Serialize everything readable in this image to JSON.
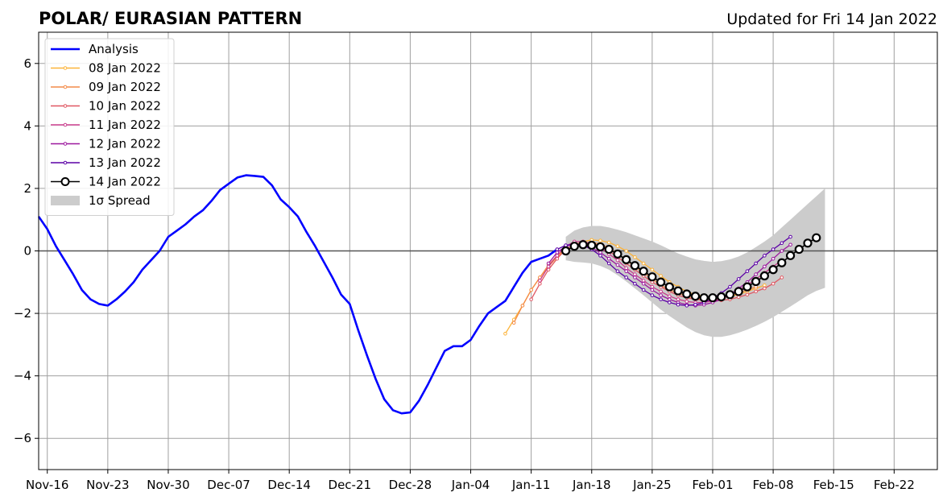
{
  "chart_data": {
    "type": "line",
    "title": "POLAR/ EURASIAN  PATTERN",
    "subtitle": "Updated for Fri 14 Jan 2022",
    "xlabel": "",
    "ylabel": "",
    "grid": true,
    "legend_placement": "top-left",
    "ylim": [
      -7,
      7
    ],
    "y_ticks": [
      -6,
      -4,
      -2,
      0,
      2,
      4,
      6
    ],
    "y_tick_labels": [
      "−6",
      "−4",
      "−2",
      "0",
      "2",
      "4",
      "6"
    ],
    "xlim": [
      "2021-11-15",
      "2022-02-27"
    ],
    "x_ticks": [
      "2021-11-16",
      "2021-11-23",
      "2021-11-30",
      "2021-12-07",
      "2021-12-14",
      "2021-12-21",
      "2021-12-28",
      "2022-01-04",
      "2022-01-11",
      "2022-01-18",
      "2022-01-25",
      "2022-02-01",
      "2022-02-08",
      "2022-02-15",
      "2022-02-22"
    ],
    "x_tick_labels": [
      "Nov-16",
      "Nov-23",
      "Nov-30",
      "Dec-07",
      "Dec-14",
      "Dec-21",
      "Dec-28",
      "Jan-04",
      "Jan-11",
      "Jan-18",
      "Jan-25",
      "Feb-01",
      "Feb-08",
      "Feb-15",
      "Feb-22"
    ],
    "analysis": {
      "name": "Analysis",
      "color": "#0000ff",
      "start": "2021-11-15",
      "values": [
        1.1,
        0.7,
        0.15,
        -0.3,
        -0.75,
        -1.25,
        -1.55,
        -1.7,
        -1.75,
        -1.55,
        -1.3,
        -1.0,
        -0.6,
        -0.3,
        0.0,
        0.45,
        0.65,
        0.85,
        1.1,
        1.3,
        1.6,
        1.95,
        2.15,
        2.35,
        2.42,
        2.4,
        2.37,
        2.1,
        1.65,
        1.4,
        1.1,
        0.6,
        0.15,
        -0.35,
        -0.85,
        -1.4,
        -1.7,
        -2.55,
        -3.35,
        -4.1,
        -4.75,
        -5.1,
        -5.2,
        -5.17,
        -4.8,
        -4.3,
        -3.75,
        -3.2,
        -3.05,
        -3.05,
        -2.85,
        -2.4,
        -2.0,
        -1.8,
        -1.6,
        -1.15,
        -0.7,
        -0.35,
        -0.25,
        -0.15,
        0.05
      ]
    },
    "forecasts": [
      {
        "name": "08 Jan 2022",
        "color": "#fcb339",
        "start": "2022-01-08",
        "values": [
          -2.65,
          -2.2,
          -1.75,
          -1.25,
          -0.85,
          -0.5,
          -0.2,
          0.05,
          0.2,
          0.3,
          0.35,
          0.33,
          0.27,
          0.15,
          0.0,
          -0.2,
          -0.4,
          -0.6,
          -0.8,
          -1.0,
          -1.15,
          -1.3,
          -1.4,
          -1.45,
          -1.5,
          -1.5,
          -1.45,
          -1.4,
          -1.3,
          -1.2,
          -1.1
        ]
      },
      {
        "name": "09 Jan 2022",
        "color": "#f48b48",
        "start": "2022-01-09",
        "values": [
          -2.3,
          -1.75,
          -1.25,
          -0.85,
          -0.45,
          -0.15,
          0.05,
          0.2,
          0.27,
          0.27,
          0.22,
          0.1,
          -0.1,
          -0.3,
          -0.5,
          -0.7,
          -0.9,
          -1.1,
          -1.25,
          -1.35,
          -1.45,
          -1.52,
          -1.55,
          -1.55,
          -1.52,
          -1.45,
          -1.35,
          -1.25,
          -1.15
        ]
      },
      {
        "name": "10 Jan 2022",
        "color": "#e05762",
        "start": "2022-01-11",
        "values": [
          -1.55,
          -1.05,
          -0.6,
          -0.25,
          0.05,
          0.2,
          0.28,
          0.25,
          0.15,
          0.0,
          -0.2,
          -0.4,
          -0.6,
          -0.8,
          -1.0,
          -1.15,
          -1.3,
          -1.42,
          -1.5,
          -1.55,
          -1.58,
          -1.6,
          -1.58,
          -1.55,
          -1.48,
          -1.4,
          -1.3,
          -1.2,
          -1.05,
          -0.85
        ]
      },
      {
        "name": "11 Jan 2022",
        "color": "#c93c8c",
        "start": "2022-01-12",
        "values": [
          -0.95,
          -0.5,
          -0.15,
          0.15,
          0.3,
          0.3,
          0.22,
          0.1,
          -0.1,
          -0.3,
          -0.55,
          -0.75,
          -0.95,
          -1.15,
          -1.3,
          -1.45,
          -1.55,
          -1.62,
          -1.65,
          -1.65,
          -1.6,
          -1.52,
          -1.4,
          -1.25,
          -1.1,
          -0.9,
          -0.7,
          -0.5,
          -0.3
        ]
      },
      {
        "name": "12 Jan 2022",
        "color": "#9c179e",
        "start": "2022-01-13",
        "values": [
          -0.4,
          -0.05,
          0.15,
          0.22,
          0.2,
          0.1,
          -0.05,
          -0.25,
          -0.45,
          -0.65,
          -0.85,
          -1.05,
          -1.25,
          -1.42,
          -1.55,
          -1.65,
          -1.72,
          -1.75,
          -1.72,
          -1.65,
          -1.55,
          -1.4,
          -1.2,
          -1.0,
          -0.75,
          -0.5,
          -0.25,
          0.0,
          0.2
        ]
      },
      {
        "name": "13 Jan 2022",
        "color": "#5c01a6",
        "start": "2022-01-14",
        "values": [
          0.05,
          0.18,
          0.22,
          0.18,
          0.05,
          -0.15,
          -0.4,
          -0.65,
          -0.85,
          -1.05,
          -1.25,
          -1.42,
          -1.55,
          -1.65,
          -1.72,
          -1.75,
          -1.72,
          -1.65,
          -1.52,
          -1.35,
          -1.15,
          -0.9,
          -0.65,
          -0.4,
          -0.15,
          0.05,
          0.25,
          0.45
        ]
      },
      {
        "name": "14 Jan 2022",
        "color": "#000000",
        "start": "2022-01-15",
        "values": [
          0.0,
          0.15,
          0.2,
          0.18,
          0.13,
          0.05,
          -0.1,
          -0.28,
          -0.47,
          -0.65,
          -0.83,
          -1.0,
          -1.15,
          -1.28,
          -1.38,
          -1.45,
          -1.5,
          -1.5,
          -1.47,
          -1.4,
          -1.3,
          -1.15,
          -0.98,
          -0.8,
          -0.6,
          -0.38,
          -0.15,
          0.05,
          0.25,
          0.42
        ]
      }
    ],
    "spread": {
      "name": "1σ Spread",
      "color": "#cccccc",
      "start": "2022-01-15",
      "upper": [
        0.45,
        0.65,
        0.75,
        0.8,
        0.8,
        0.75,
        0.68,
        0.6,
        0.5,
        0.4,
        0.3,
        0.18,
        0.05,
        -0.08,
        -0.18,
        -0.27,
        -0.32,
        -0.35,
        -0.33,
        -0.27,
        -0.18,
        -0.05,
        0.12,
        0.3,
        0.5,
        0.75,
        1.0,
        1.25,
        1.5,
        1.75,
        2.0
      ],
      "lower": [
        -0.3,
        -0.35,
        -0.37,
        -0.4,
        -0.48,
        -0.6,
        -0.78,
        -0.98,
        -1.2,
        -1.42,
        -1.65,
        -1.88,
        -2.08,
        -2.27,
        -2.45,
        -2.6,
        -2.7,
        -2.75,
        -2.75,
        -2.7,
        -2.62,
        -2.52,
        -2.4,
        -2.27,
        -2.12,
        -1.95,
        -1.78,
        -1.6,
        -1.42,
        -1.28,
        -1.18
      ]
    }
  }
}
